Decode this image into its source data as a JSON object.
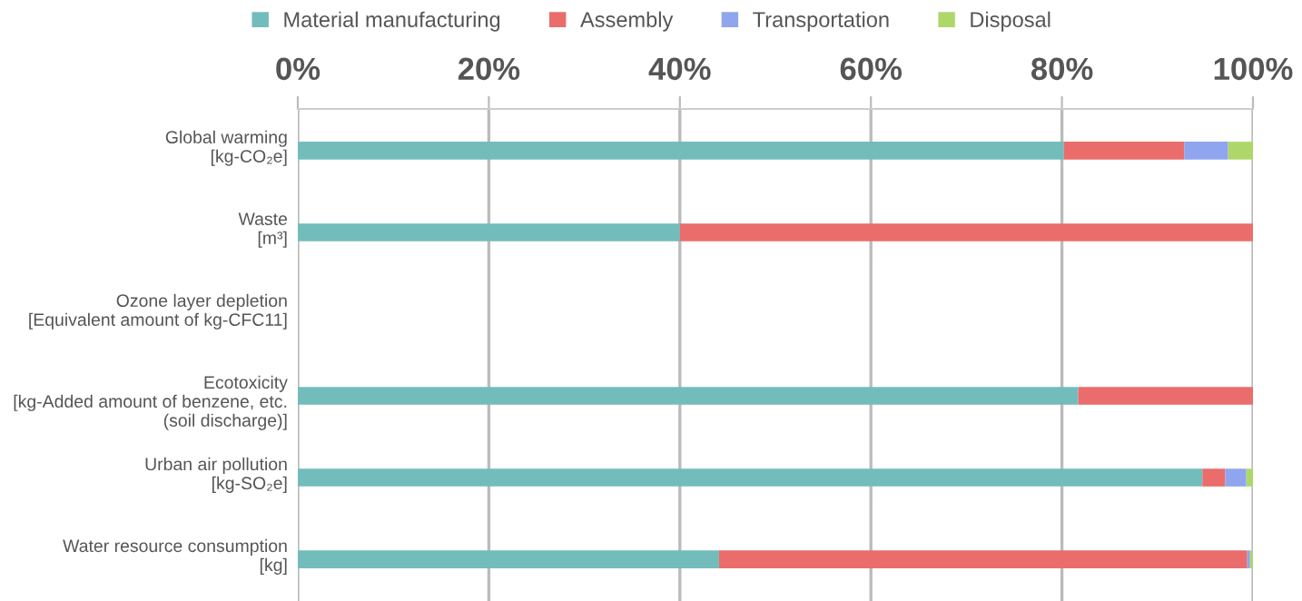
{
  "chart_data": {
    "type": "bar",
    "orientation": "horizontal",
    "stacked": true,
    "categories": [
      "Global warming\n[kg-CO₂e]",
      "Waste\n[m³]",
      "Ozone layer depletion\n[Equivalent amount of kg-CFC11]",
      "Ecotoxicity\n[kg-Added amount of benzene, etc.\n(soil discharge)]",
      "Urban air pollution\n[kg-SO₂e]",
      "Water resource consumption\n[kg]"
    ],
    "series": [
      {
        "name": "Material manufacturing",
        "color": "#72bdbc",
        "values": [
          80.2,
          40.0,
          null,
          81.7,
          94.7,
          44.1
        ]
      },
      {
        "name": "Assembly",
        "color": "#ea6d6b",
        "values": [
          12.6,
          60.0,
          null,
          18.3,
          2.4,
          55.3
        ]
      },
      {
        "name": "Transportation",
        "color": "#8fa5ee",
        "values": [
          4.6,
          0,
          null,
          0,
          2.2,
          0.3
        ]
      },
      {
        "name": "Disposal",
        "color": "#aed76a",
        "values": [
          2.6,
          0,
          null,
          0,
          0.7,
          0.3
        ]
      }
    ],
    "xlim": [
      0,
      100
    ],
    "xticks": [
      {
        "value": 0,
        "label": "0%"
      },
      {
        "value": 20,
        "label": "20%"
      },
      {
        "value": 40,
        "label": "40%"
      },
      {
        "value": 60,
        "label": "60%"
      },
      {
        "value": 80,
        "label": "80%"
      },
      {
        "value": 100,
        "label": "100%"
      }
    ],
    "grid": "x",
    "legend": "top"
  }
}
